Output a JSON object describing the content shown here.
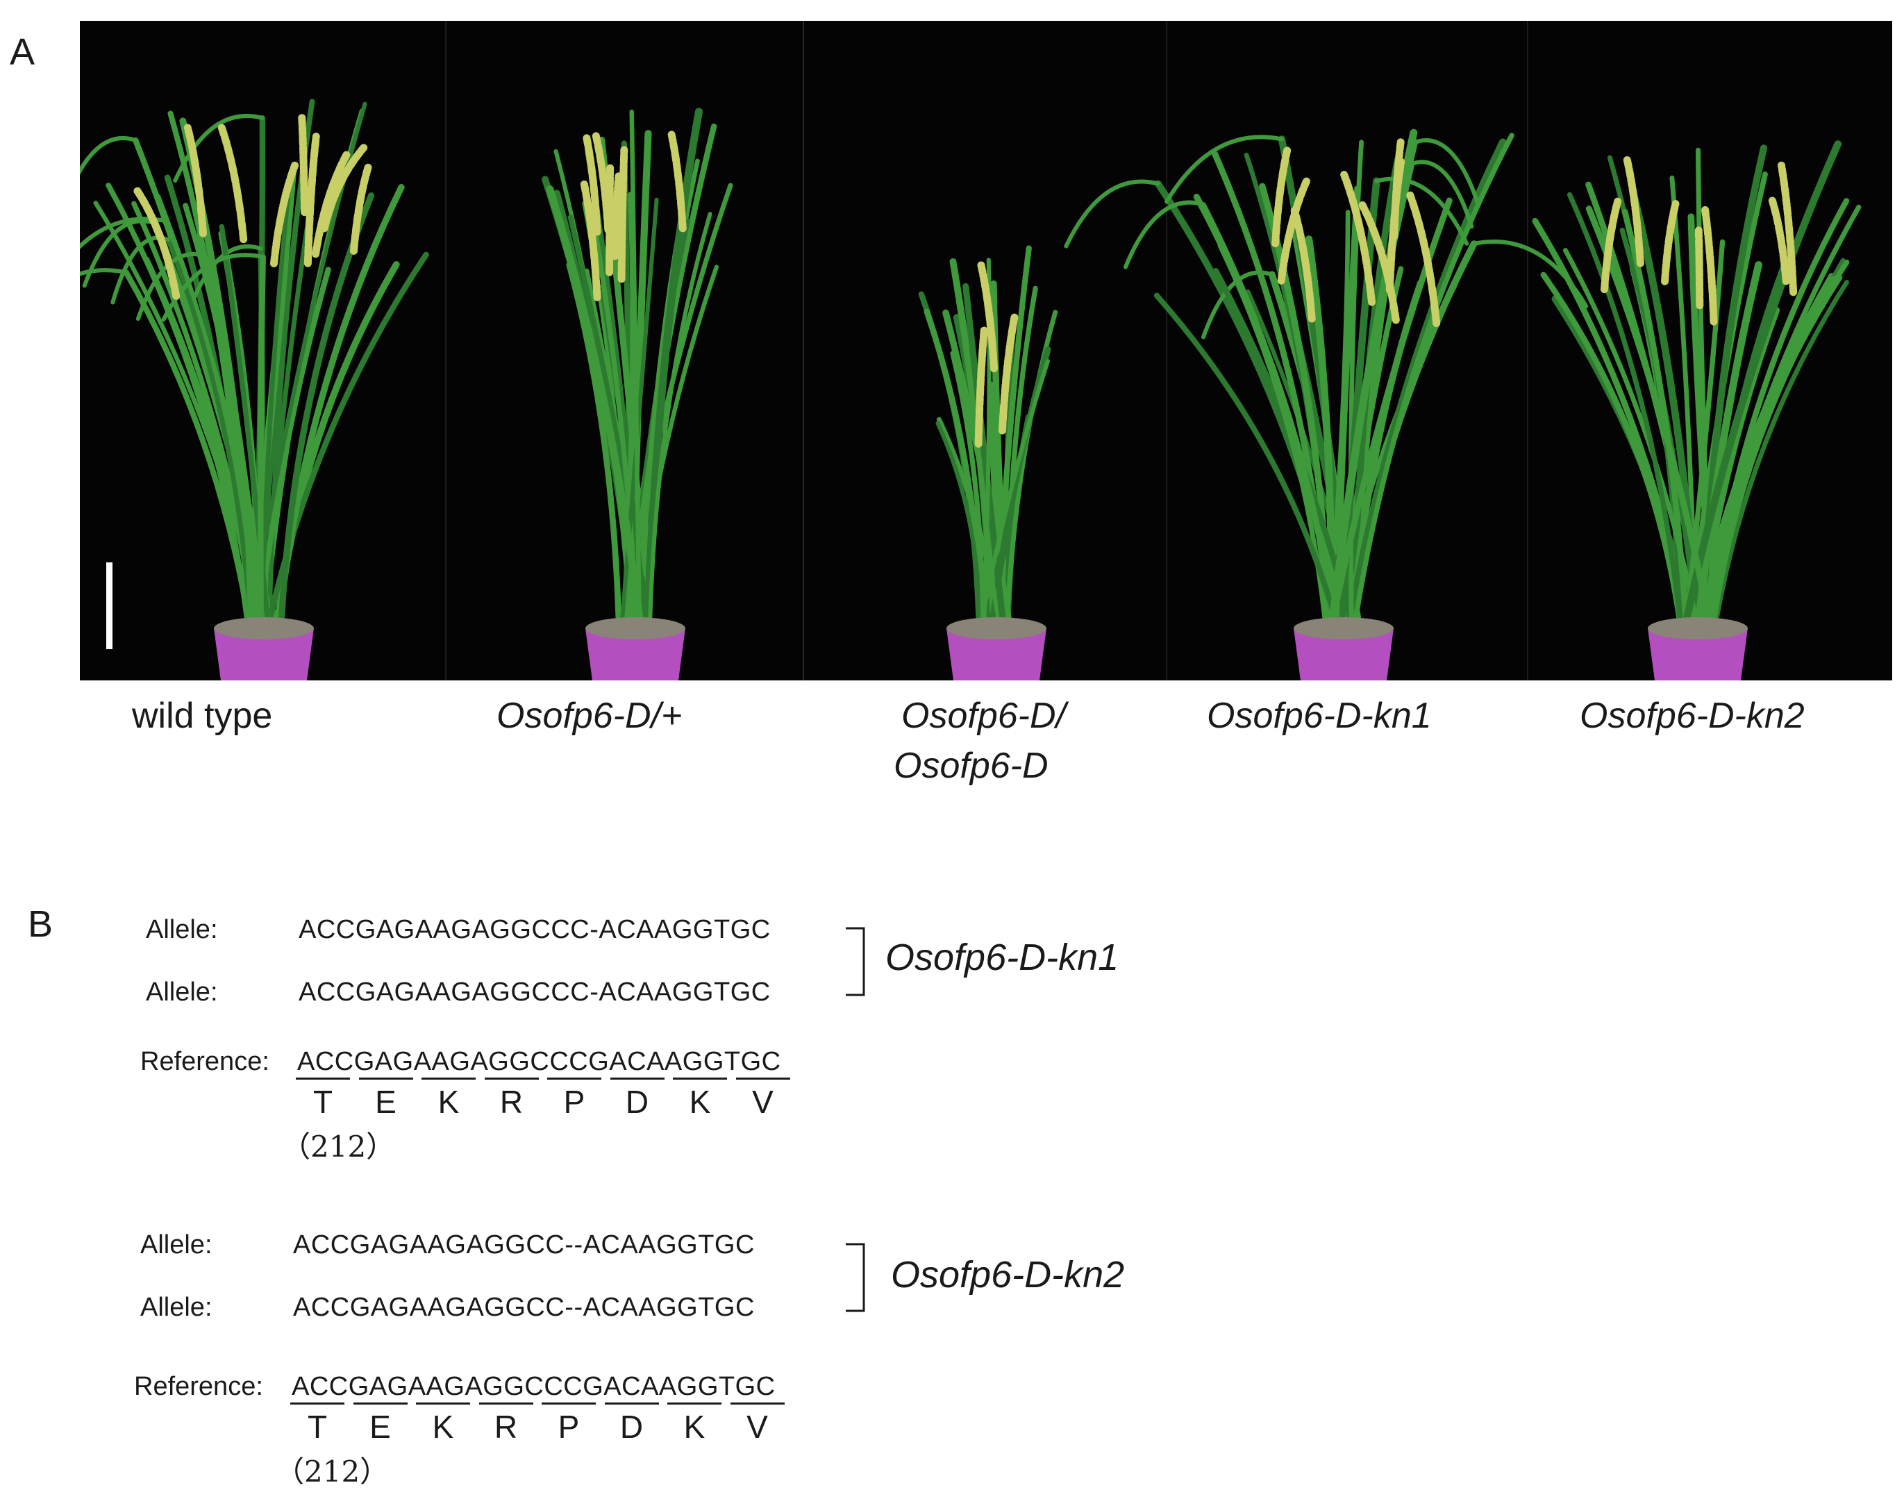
{
  "panel_a": {
    "letter": "A",
    "labels": [
      {
        "text": "wild type",
        "italic": false
      },
      {
        "text": "Osofp6-D/+",
        "italic": true
      },
      {
        "text": "Osofp6-D/",
        "italic": true
      },
      {
        "text": "Osofp6-D",
        "italic": true
      },
      {
        "text": "Osofp6-D-kn1",
        "italic": true
      },
      {
        "text": "Osofp6-D-kn2",
        "italic": true
      }
    ]
  },
  "panel_b": {
    "letter": "B",
    "groups": [
      {
        "genotype": "Osofp6-D-kn1",
        "allele_label": "Allele:",
        "allele_1": "ACCGAGAAGAGGCCC-ACAAGGTGC",
        "allele_2": "ACCGAGAAGAGGCCC-ACAAGGTGC",
        "reference_label": "Reference:",
        "reference": "ACCGAGAAGAGGCCCGACAAGGTGC",
        "amino_acids": [
          "T",
          "E",
          "K",
          "R",
          "P",
          "D",
          "K",
          "V"
        ],
        "position": "（212）"
      },
      {
        "genotype": "Osofp6-D-kn2",
        "allele_label": "Allele:",
        "allele_1": "ACCGAGAAGAGGCC--ACAAGGTGC",
        "allele_2": "ACCGAGAAGAGGCC--ACAAGGTGC",
        "reference_label": "Reference:",
        "reference": "ACCGAGAAGAGGCCCGACAAGGTGC",
        "amino_acids": [
          "T",
          "E",
          "K",
          "R",
          "P",
          "D",
          "K",
          "V"
        ],
        "position": "（212）"
      }
    ]
  },
  "colors": {
    "photo_background": "#040404",
    "leaf": "#3f9a3c",
    "leaf_dark": "#2c7a2f",
    "panicle": "#c8cf66",
    "pot": "#b44fc0",
    "soil": "#8a8378",
    "scale_bar": "#ffffff"
  }
}
